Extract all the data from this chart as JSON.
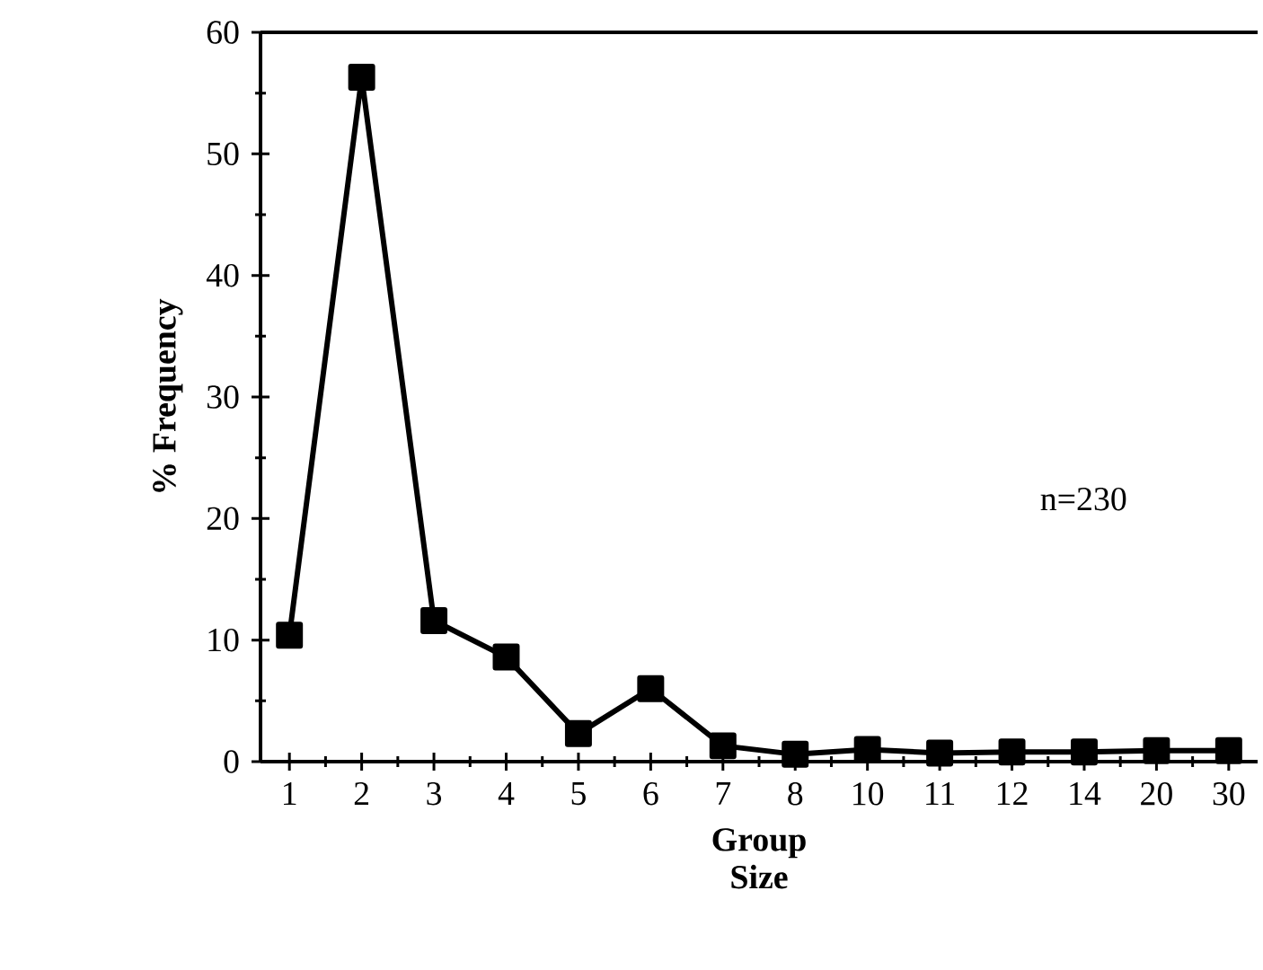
{
  "chart_data": {
    "type": "line",
    "xlabel": "Group Size",
    "ylabel": "% Frequency",
    "categories": [
      "1",
      "2",
      "3",
      "4",
      "5",
      "6",
      "7",
      "8",
      "10",
      "11",
      "12",
      "14",
      "20",
      "30"
    ],
    "values": [
      10.4,
      56.3,
      11.6,
      8.6,
      2.3,
      6.0,
      1.3,
      0.6,
      1.0,
      0.7,
      0.8,
      0.8,
      0.9,
      0.9
    ],
    "color": "#000000",
    "marker": "square",
    "ylim": [
      0,
      60
    ],
    "yticks": [
      0,
      10,
      20,
      30,
      40,
      50,
      60
    ],
    "annotations": [
      "n=230"
    ]
  }
}
